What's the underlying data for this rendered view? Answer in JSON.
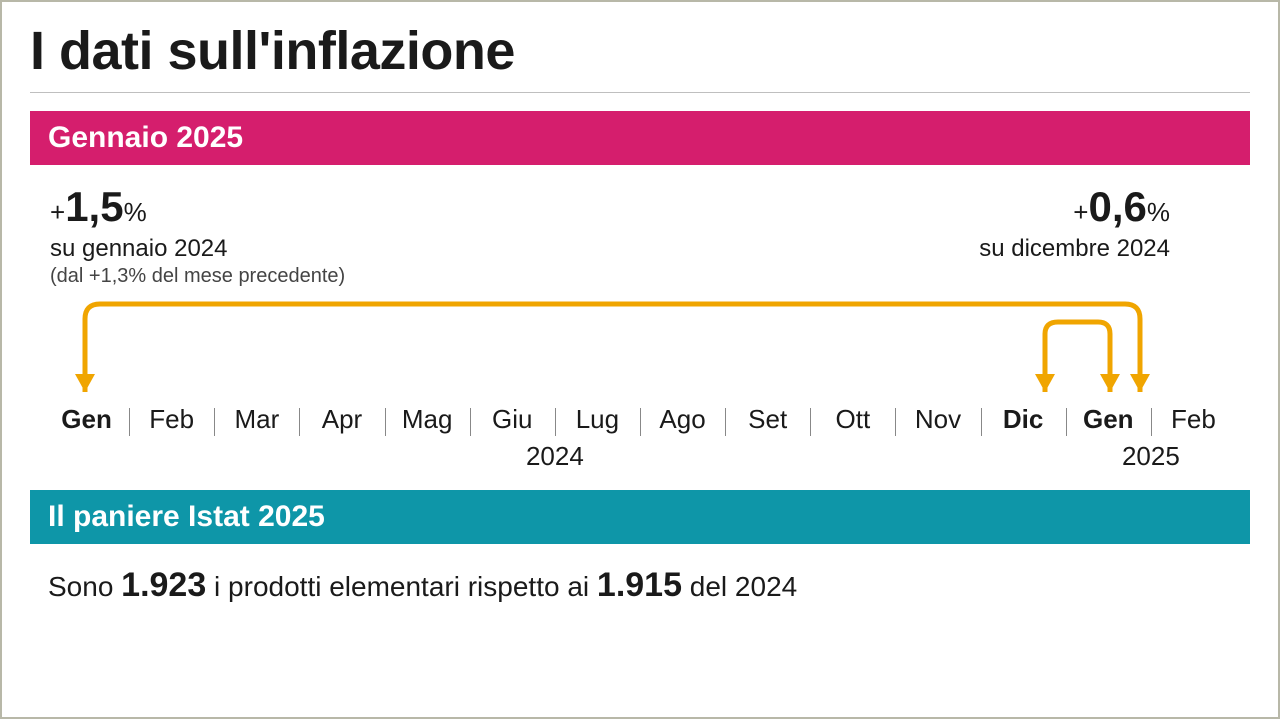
{
  "title": "I dati sull'inflazione",
  "section1": {
    "banner": "Gennaio 2025",
    "banner_color": "#d51e6d",
    "left": {
      "sign": "+",
      "value": "1,5",
      "pct": "%",
      "sub": "su gennaio 2024",
      "sub2": "(dal +1,3% del mese precedente)"
    },
    "right": {
      "sign": "+",
      "value": "0,6",
      "pct": "%",
      "sub": "su dicembre 2024"
    },
    "arrows": {
      "color": "#f0a500",
      "stroke_width": 5
    },
    "timeline": {
      "months": [
        {
          "label": "Gen",
          "bold": true
        },
        {
          "label": "Feb",
          "bold": false
        },
        {
          "label": "Mar",
          "bold": false
        },
        {
          "label": "Apr",
          "bold": false
        },
        {
          "label": "Mag",
          "bold": false
        },
        {
          "label": "Giu",
          "bold": false
        },
        {
          "label": "Lug",
          "bold": false
        },
        {
          "label": "Ago",
          "bold": false
        },
        {
          "label": "Set",
          "bold": false
        },
        {
          "label": "Ott",
          "bold": false
        },
        {
          "label": "Nov",
          "bold": false
        },
        {
          "label": "Dic",
          "bold": true
        },
        {
          "label": "Gen",
          "bold": true
        },
        {
          "label": "Feb",
          "bold": false
        }
      ],
      "year1": "2024",
      "year2": "2025",
      "separator_color": "#888888",
      "font_size": 26
    }
  },
  "section2": {
    "banner": "Il paniere Istat 2025",
    "banner_color": "#0e96a8",
    "text_pre": "Sono ",
    "num1": "1.923",
    "text_mid": " i prodotti elementari rispetto ai ",
    "num2": "1.915",
    "text_post": " del 2024"
  },
  "colors": {
    "background": "#ffffff",
    "border": "#b8b8a8",
    "text": "#1a1a1a",
    "rule": "#bfbfbf"
  }
}
